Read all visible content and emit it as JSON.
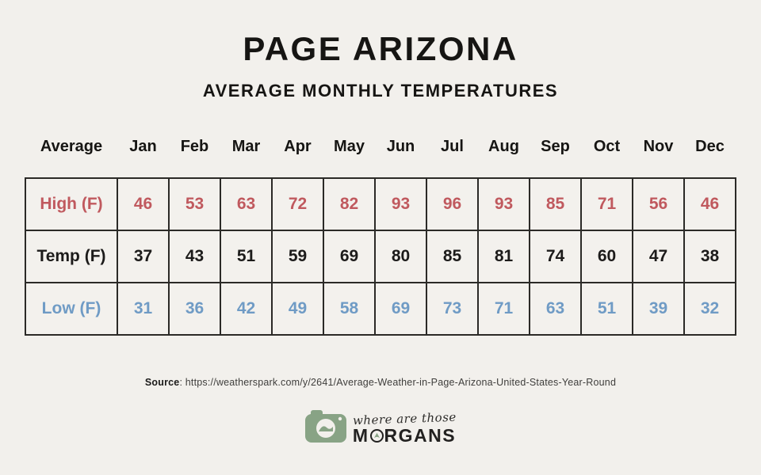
{
  "page": {
    "title": "PAGE ARIZONA",
    "subtitle": "AVERAGE MONTHLY TEMPERATURES"
  },
  "chart_data": {
    "type": "table",
    "title": "PAGE ARIZONA",
    "subtitle": "AVERAGE MONTHLY TEMPERATURES",
    "columns": [
      "Average",
      "Jan",
      "Feb",
      "Mar",
      "Apr",
      "May",
      "Jun",
      "Jul",
      "Aug",
      "Sep",
      "Oct",
      "Nov",
      "Dec"
    ],
    "rows": [
      {
        "label": "High (F)",
        "color": "#c0595e",
        "values": [
          46,
          53,
          63,
          72,
          82,
          93,
          96,
          93,
          85,
          71,
          56,
          46
        ]
      },
      {
        "label": "Temp (F)",
        "color": "#1c1b1a",
        "values": [
          37,
          43,
          51,
          59,
          69,
          80,
          85,
          81,
          74,
          60,
          47,
          38
        ]
      },
      {
        "label": "Low (F)",
        "color": "#6f9bc5",
        "values": [
          31,
          36,
          42,
          49,
          58,
          69,
          73,
          71,
          63,
          51,
          39,
          32
        ]
      }
    ],
    "layout": {
      "grid": "all-borders",
      "header_borders": false
    }
  },
  "source": {
    "label": "Source",
    "rest": ": https://weatherspark.com/y/2641/Average-Weather-in-Page-Arizona-United-States-Year-Round"
  },
  "logo": {
    "script_text": "where are those",
    "brand_m": "M",
    "brand_rest": "RGANS",
    "camera_color": "#88a385"
  },
  "colors": {
    "background": "#f2f0ec",
    "cell_background": "#f3f1ed",
    "border": "#2b2a27",
    "high_red": "#c0595e",
    "mean_black": "#1c1b1a",
    "low_blue": "#6f9bc5"
  }
}
